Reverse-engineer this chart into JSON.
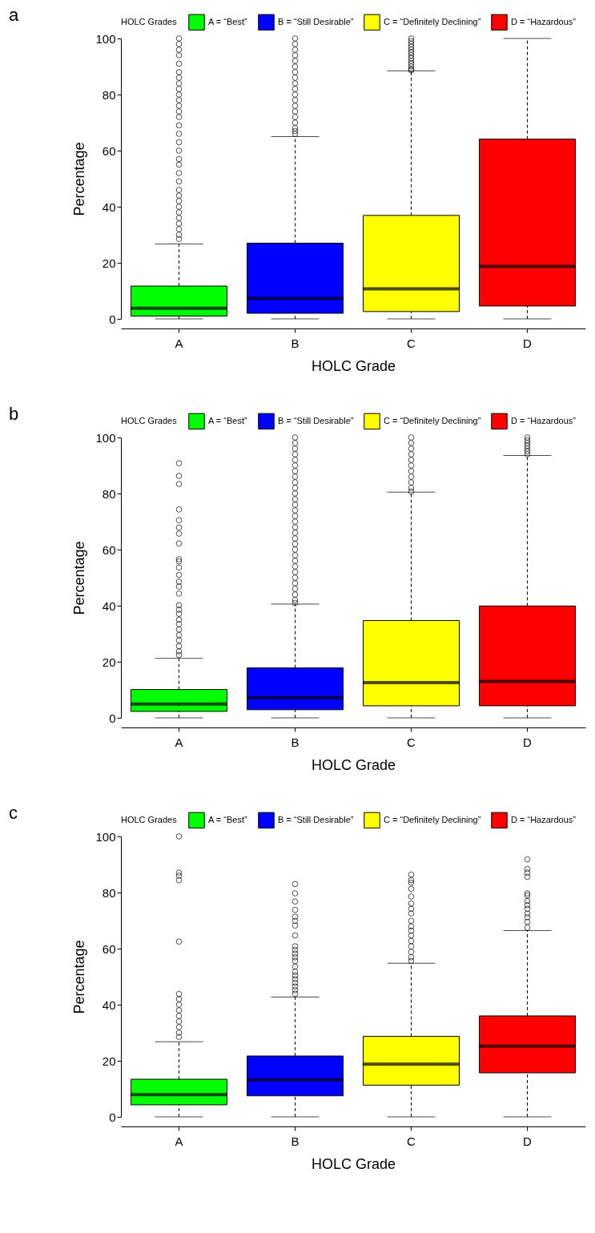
{
  "chart_data": [
    {
      "type": "box",
      "title": "a",
      "xlabel": "HOLC Grade",
      "ylabel": "Percentage",
      "legend_title": "HOLC Grades",
      "legend": "top",
      "grid": false,
      "categories": [
        "A",
        "B",
        "C",
        "D"
      ],
      "ylim": [
        0,
        100
      ],
      "yticks": [
        0,
        20,
        40,
        60,
        80,
        100
      ],
      "series": [
        {
          "name": "A = “Best”",
          "color": "#00ff00",
          "x": [
            "A"
          ],
          "boxes": [
            {
              "low": 0,
              "q1": 1.0,
              "median": 3.8,
              "q3": 11.7,
              "high": 26.7,
              "outliers": [
                28.5,
                30,
                32,
                34,
                36,
                38,
                40,
                42,
                44,
                46,
                49,
                52,
                55,
                57,
                60,
                63,
                66,
                69,
                72,
                74,
                76,
                78,
                80,
                82,
                84,
                86,
                88,
                91,
                94,
                96,
                98,
                100
              ]
            }
          ]
        },
        {
          "name": "B = “Still Desirable”",
          "color": "#0000ff",
          "x": [
            "B"
          ],
          "boxes": [
            {
              "low": 0,
              "q1": 2.0,
              "median": 7.3,
              "q3": 27.0,
              "high": 65.0,
              "outliers": [
                66,
                67,
                68,
                70,
                72,
                74,
                76,
                78,
                80,
                82,
                84,
                86,
                88,
                90,
                92,
                94,
                96,
                98,
                100
              ]
            }
          ]
        },
        {
          "name": "C = “Definitely Declining”",
          "color": "#ffff00",
          "x": [
            "C"
          ],
          "boxes": [
            {
              "low": 0,
              "q1": 2.6,
              "median": 10.7,
              "q3": 36.9,
              "high": 88.4,
              "outliers": [
                88.6,
                89,
                90,
                91,
                92,
                93,
                94,
                95,
                96,
                97,
                98,
                99,
                100
              ]
            }
          ]
        },
        {
          "name": "D = “Hazardous”",
          "color": "#ff0000",
          "x": [
            "D"
          ],
          "boxes": [
            {
              "low": 0,
              "q1": 4.6,
              "median": 18.7,
              "q3": 64.1,
              "high": 100
            }
          ]
        }
      ]
    },
    {
      "type": "box",
      "title": "b",
      "xlabel": "HOLC Grade",
      "ylabel": "Percentage",
      "legend_title": "HOLC Grades",
      "legend": "top",
      "grid": false,
      "categories": [
        "A",
        "B",
        "C",
        "D"
      ],
      "ylim": [
        0,
        100
      ],
      "yticks": [
        0,
        20,
        40,
        60,
        80,
        100
      ],
      "series": [
        {
          "name": "A = “Best”",
          "color": "#00ff00",
          "x": [
            "A"
          ],
          "boxes": [
            {
              "low": 0,
              "q1": 2.3,
              "median": 4.9,
              "q3": 10.1,
              "high": 21.2,
              "outliers": [
                22.4,
                23.7,
                25.6,
                27.6,
                29.5,
                31.5,
                33.4,
                35,
                37.1,
                38.6,
                40.2,
                44.3,
                46.8,
                48.6,
                51,
                53.6,
                55.8,
                56.6,
                62.2,
                65.7,
                67.9,
                70.5,
                74.3,
                83.4,
                86.3,
                90.8
              ]
            }
          ]
        },
        {
          "name": "B = “Still Desirable”",
          "color": "#0000ff",
          "x": [
            "B"
          ],
          "boxes": [
            {
              "low": 0,
              "q1": 2.9,
              "median": 7.2,
              "q3": 17.8,
              "high": 40.6,
              "outliers": [
                41,
                42,
                44,
                46,
                48,
                50,
                52,
                54,
                56,
                58,
                60,
                62,
                64,
                66,
                68,
                70,
                72,
                74,
                76,
                78,
                80,
                82,
                84,
                86,
                88,
                90,
                92,
                94,
                96,
                98,
                100
              ]
            }
          ]
        },
        {
          "name": "C = “Definitely Declining”",
          "color": "#ffff00",
          "x": [
            "C"
          ],
          "boxes": [
            {
              "low": 0,
              "q1": 4.3,
              "median": 12.6,
              "q3": 34.7,
              "high": 80.5,
              "outliers": [
                80.7,
                82,
                84,
                86,
                88,
                90,
                92,
                94,
                96,
                98,
                100
              ]
            }
          ]
        },
        {
          "name": "D = “Hazardous”",
          "color": "#ff0000",
          "x": [
            "D"
          ],
          "boxes": [
            {
              "low": 0,
              "q1": 4.3,
              "median": 13.0,
              "q3": 39.9,
              "high": 93.6,
              "outliers": [
                94,
                95,
                96,
                97,
                98,
                99,
                100
              ]
            }
          ]
        }
      ]
    },
    {
      "type": "box",
      "title": "c",
      "xlabel": "HOLC Grade",
      "ylabel": "Percentage",
      "legend_title": "HOLC Grades",
      "legend": "top",
      "grid": false,
      "categories": [
        "A",
        "B",
        "C",
        "D"
      ],
      "ylim": [
        0,
        100
      ],
      "yticks": [
        0,
        20,
        40,
        60,
        80,
        100
      ],
      "series": [
        {
          "name": "A = “Best”",
          "color": "#00ff00",
          "x": [
            "A"
          ],
          "boxes": [
            {
              "low": 0,
              "q1": 4.3,
              "median": 7.9,
              "q3": 13.4,
              "high": 26.8,
              "outliers": [
                28.5,
                30,
                32,
                34,
                36,
                38,
                40,
                42,
                43.8,
                62.5,
                84.4,
                86,
                87.1,
                100
              ]
            }
          ]
        },
        {
          "name": "B = “Still Desirable”",
          "color": "#0000ff",
          "x": [
            "B"
          ],
          "boxes": [
            {
              "low": 0,
              "q1": 7.5,
              "median": 13.2,
              "q3": 21.7,
              "high": 42.7,
              "outliers": [
                43.9,
                45.2,
                46.5,
                47.8,
                49.1,
                50.4,
                51.7,
                53.6,
                55.6,
                56.9,
                58.2,
                59.5,
                60.8,
                64.7,
                68.2,
                69.9,
                71.4,
                73.8,
                76.8,
                79.7,
                83
              ]
            }
          ]
        },
        {
          "name": "C = “Definitely Declining”",
          "color": "#ffff00",
          "x": [
            "C"
          ],
          "boxes": [
            {
              "low": 0,
              "q1": 11.3,
              "median": 18.8,
              "q3": 28.7,
              "high": 54.8,
              "outliers": [
                55.6,
                56.9,
                58.8,
                60.8,
                62.7,
                64.7,
                66.4,
                67.9,
                69.9,
                72.5,
                74.2,
                76.1,
                78.6,
                81.3,
                83.5,
                84.4,
                86.4
              ]
            }
          ]
        },
        {
          "name": "D = “Hazardous”",
          "color": "#ff0000",
          "x": [
            "D"
          ],
          "boxes": [
            {
              "low": 0,
              "q1": 15.7,
              "median": 25.2,
              "q3": 36.0,
              "high": 66.4,
              "outliers": [
                67.5,
                69.5,
                71.2,
                72.5,
                74.2,
                75.5,
                77,
                79,
                79.7,
                85.6,
                87.1,
                88.4,
                91.8
              ]
            }
          ]
        }
      ]
    }
  ]
}
